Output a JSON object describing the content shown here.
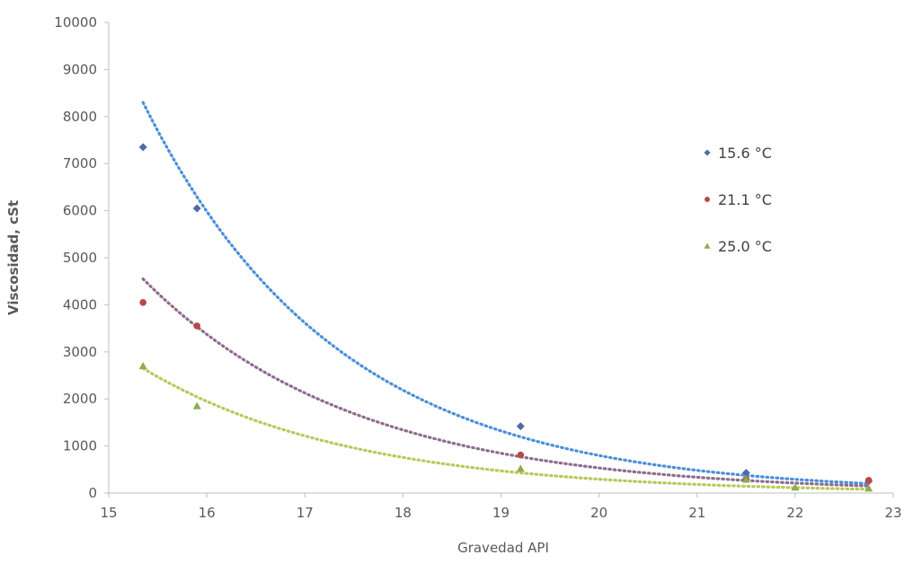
{
  "chart_data": {
    "type": "scatter",
    "xlabel": "Gravedad API",
    "ylabel": "Viscosidad, cSt",
    "xlim": [
      15,
      23
    ],
    "ylim": [
      0,
      10000
    ],
    "x_ticks": [
      "15",
      "16",
      "17",
      "18",
      "19",
      "20",
      "21",
      "22",
      "23"
    ],
    "y_ticks": [
      "0",
      "1000",
      "2000",
      "3000",
      "4000",
      "5000",
      "6000",
      "7000",
      "8000",
      "9000",
      "10000"
    ],
    "grid": false,
    "legend_position": "right",
    "series": [
      {
        "name": "15.6 °C",
        "marker": "diamond",
        "color": "#4f6aa8",
        "trend_color": "#4a90d9",
        "x": [
          15.35,
          15.9,
          19.2,
          21.5,
          22.75
        ],
        "y": [
          7350,
          6050,
          1420,
          430,
          250
        ],
        "trendline": {
          "x_from": 15.35,
          "x_to": 22.75,
          "y_from": 8300,
          "y_to": 200
        }
      },
      {
        "name": "21.1 °C",
        "marker": "circle",
        "color": "#b94a48",
        "trend_color": "#8e6b8e",
        "x": [
          15.35,
          15.9,
          19.2,
          21.5,
          22.75
        ],
        "y": [
          4050,
          3550,
          810,
          290,
          270
        ],
        "trendline": {
          "x_from": 15.35,
          "x_to": 22.75,
          "y_from": 4550,
          "y_to": 150
        }
      },
      {
        "name": "25.0 °C",
        "marker": "triangle",
        "color": "#8cae50",
        "trend_color": "#b9c85a",
        "x": [
          15.35,
          15.9,
          19.2,
          21.5,
          22,
          22.75
        ],
        "y": [
          2700,
          1850,
          520,
          290,
          120,
          100
        ],
        "trendline": {
          "x_from": 15.35,
          "x_to": 22.75,
          "y_from": 2650,
          "y_to": 80
        }
      }
    ]
  }
}
